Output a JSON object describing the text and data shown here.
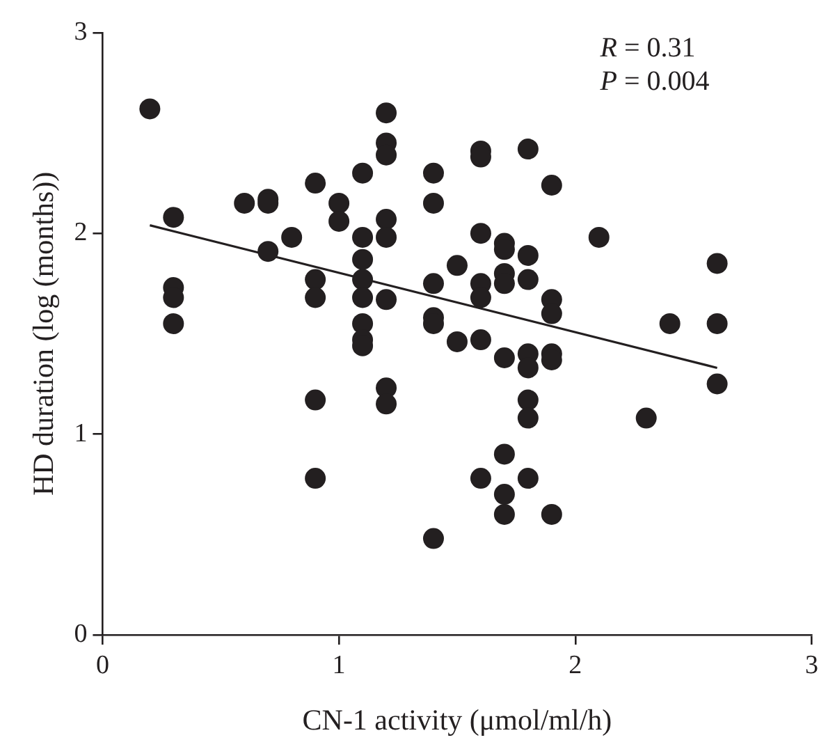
{
  "chart_data": {
    "type": "scatter",
    "xlabel": "CN-1 activity (μmol/ml/h)",
    "ylabel": "HD duration (log (months))",
    "annotations": [
      "R = 0.31",
      "P = 0.004"
    ],
    "xlim": [
      0,
      3
    ],
    "xticks": [
      0,
      1,
      2,
      3
    ],
    "ylim": [
      0,
      3
    ],
    "yticks": [
      0,
      1,
      2,
      3
    ],
    "grid": false,
    "marker": "circle",
    "series": [
      {
        "type": "scatter",
        "color": "#231f20",
        "x": [
          0.2,
          0.3,
          0.3,
          0.3,
          0.3,
          0.6,
          0.7,
          0.7,
          0.7,
          0.8,
          0.9,
          0.9,
          0.9,
          0.9,
          0.9,
          1.0,
          1.0,
          1.1,
          1.1,
          1.1,
          1.1,
          1.1,
          1.1,
          1.1,
          1.1,
          1.2,
          1.2,
          1.2,
          1.2,
          1.2,
          1.2,
          1.2,
          1.2,
          1.4,
          1.4,
          1.4,
          1.4,
          1.4,
          1.4,
          1.5,
          1.5,
          1.6,
          1.6,
          1.6,
          1.6,
          1.6,
          1.6,
          1.6,
          1.7,
          1.7,
          1.7,
          1.7,
          1.7,
          1.7,
          1.7,
          1.7,
          1.8,
          1.8,
          1.8,
          1.8,
          1.8,
          1.8,
          1.8,
          1.8,
          1.9,
          1.9,
          1.9,
          1.9,
          1.9,
          1.9,
          2.1,
          2.3,
          2.4,
          2.6,
          2.6,
          2.6
        ],
        "values": [
          2.62,
          2.08,
          1.73,
          1.68,
          1.55,
          2.15,
          2.17,
          2.15,
          1.91,
          1.98,
          2.25,
          1.77,
          1.68,
          1.17,
          0.78,
          2.15,
          2.06,
          2.3,
          1.98,
          1.87,
          1.77,
          1.68,
          1.55,
          1.47,
          1.44,
          2.6,
          2.45,
          2.39,
          2.07,
          1.98,
          1.67,
          1.23,
          1.15,
          2.3,
          2.15,
          1.75,
          1.58,
          1.55,
          0.48,
          1.84,
          1.46,
          2.41,
          2.38,
          2.0,
          1.75,
          1.68,
          1.47,
          0.78,
          1.95,
          1.92,
          1.8,
          1.75,
          1.38,
          0.9,
          0.7,
          0.6,
          2.42,
          1.89,
          1.77,
          1.4,
          1.33,
          1.17,
          1.08,
          0.78,
          2.24,
          1.67,
          1.6,
          1.4,
          1.37,
          0.6,
          1.98,
          1.08,
          1.55,
          1.85,
          1.55,
          1.25
        ]
      },
      {
        "type": "line",
        "color": "#231f20",
        "marker": "none",
        "x": [
          0.2,
          2.6
        ],
        "values": [
          2.04,
          1.33
        ]
      }
    ]
  }
}
